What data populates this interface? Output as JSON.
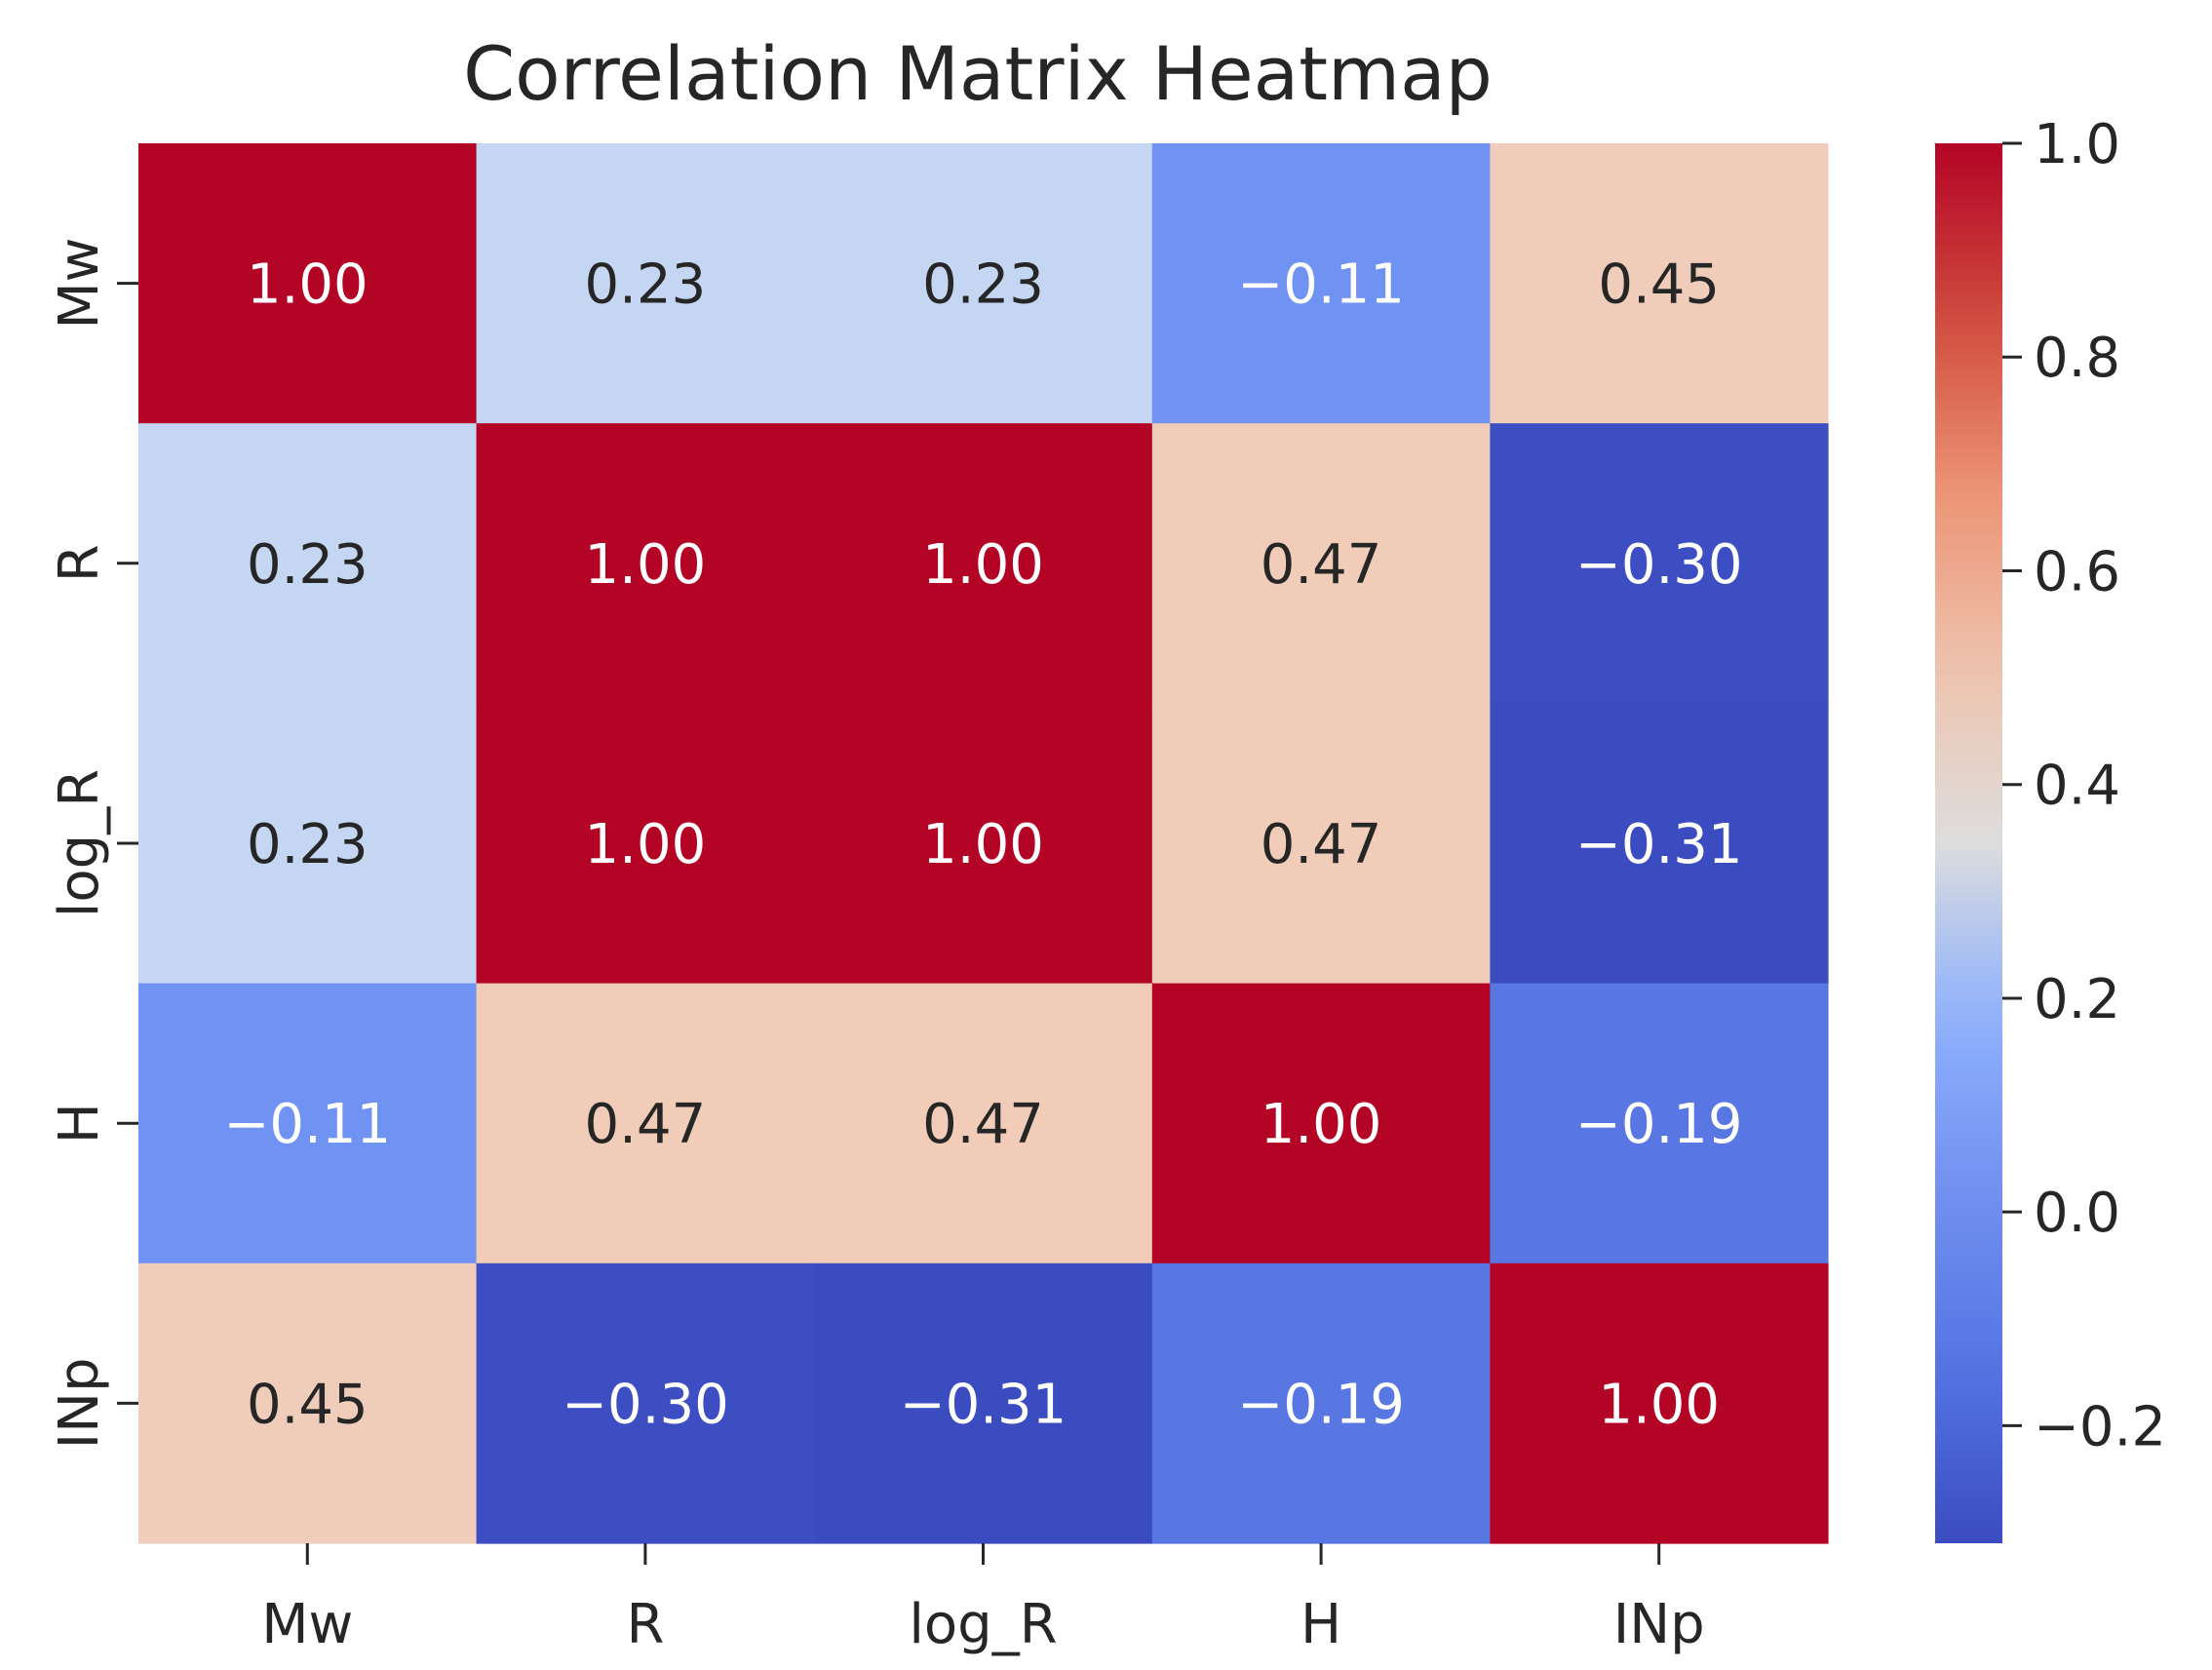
{
  "chart_data": {
    "type": "heatmap",
    "title": "Correlation Matrix Heatmap",
    "xlabel": "",
    "ylabel": "",
    "x_categories": [
      "Mw",
      "R",
      "log_R",
      "H",
      "INp"
    ],
    "y_categories": [
      "Mw",
      "R",
      "log_R",
      "H",
      "INp"
    ],
    "values": [
      [
        1.0,
        0.23,
        0.23,
        -0.11,
        0.45
      ],
      [
        0.23,
        1.0,
        1.0,
        0.47,
        -0.3
      ],
      [
        0.23,
        1.0,
        1.0,
        0.47,
        -0.31
      ],
      [
        -0.11,
        0.47,
        0.47,
        1.0,
        -0.19
      ],
      [
        0.45,
        -0.3,
        -0.31,
        -0.19,
        1.0
      ]
    ],
    "annotations": [
      [
        "1.00",
        "0.23",
        "0.23",
        "−0.11",
        "0.45"
      ],
      [
        "0.23",
        "1.00",
        "1.00",
        "0.47",
        "−0.30"
      ],
      [
        "0.23",
        "1.00",
        "1.00",
        "0.47",
        "−0.31"
      ],
      [
        "−0.11",
        "0.47",
        "0.47",
        "1.00",
        "−0.19"
      ],
      [
        "0.45",
        "−0.30",
        "−0.31",
        "−0.19",
        "1.00"
      ]
    ],
    "colormap": "coolwarm",
    "vmin": -0.31,
    "vmax": 1.0,
    "colorbar_ticks": [
      1.0,
      0.8,
      0.6,
      0.4,
      0.2,
      0.0,
      -0.2
    ],
    "colorbar_tick_labels": [
      "1.0",
      "0.8",
      "0.6",
      "0.4",
      "0.2",
      "0.0",
      "−0.2"
    ],
    "text_color_dark": "#262626",
    "text_color_light": "#ffffff"
  }
}
